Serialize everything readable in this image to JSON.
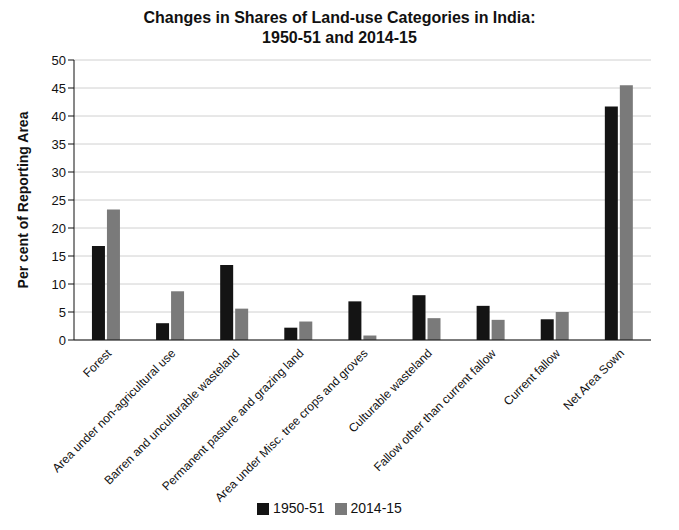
{
  "chart_data": {
    "type": "bar",
    "title": "Changes in Shares of Land-use Categories in India: 1950-51 and 2014-15",
    "y_label": "Per cent of Reporting Area",
    "categories": [
      "Forest",
      "Area under non-agricultural use",
      "Barren and unculturable wasteland",
      "Permanent pasture and grazing land",
      "Area under Misc. tree crops and groves",
      "Culturable wasteland",
      "Fallow other than current fallow",
      "Current fallow",
      "Net Area Sown"
    ],
    "series": [
      {
        "name": "1950-51",
        "color": "#141414",
        "values": [
          16.8,
          3.0,
          13.4,
          2.2,
          6.9,
          8.0,
          6.1,
          3.7,
          41.7
        ]
      },
      {
        "name": "2014-15",
        "color": "#7a7a7a",
        "values": [
          23.3,
          8.7,
          5.6,
          3.3,
          0.8,
          3.9,
          3.6,
          5.0,
          45.5
        ]
      }
    ],
    "ylim": [
      0,
      50
    ],
    "yticks": [
      0,
      5,
      10,
      15,
      20,
      25,
      30,
      35,
      40,
      45,
      50
    ],
    "grid": true,
    "legend": "bottom"
  }
}
